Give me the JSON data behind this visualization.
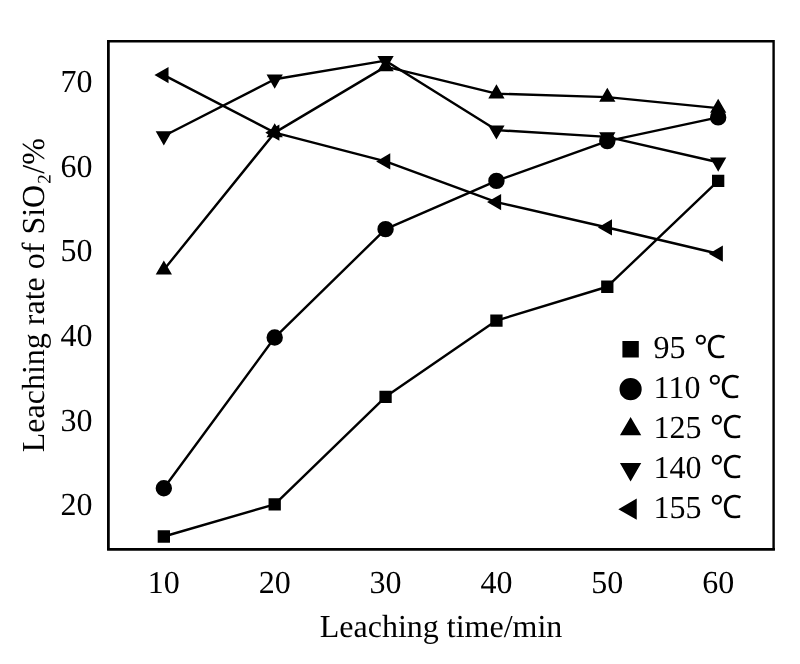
{
  "chart_data": {
    "type": "line",
    "xlabel": "Leaching time/min",
    "ylabel": "Leaching rate of SiO₂/%",
    "x": [
      10,
      20,
      30,
      40,
      50,
      60
    ],
    "series": [
      {
        "name": "95 ℃",
        "color": "#000000",
        "marker": "square",
        "values": [
          16.5,
          20.3,
          33,
          42,
          46,
          58.5
        ]
      },
      {
        "name": "110 ℃",
        "color": "#000000",
        "marker": "circle",
        "values": [
          22.2,
          40,
          52.8,
          58.5,
          63.2,
          66
        ]
      },
      {
        "name": "125 ℃",
        "color": "#000000",
        "marker": "triangle",
        "values": [
          48,
          64.2,
          72,
          68.8,
          68.4,
          67.1
        ]
      },
      {
        "name": "140 ℃",
        "color": "#000000",
        "marker": "triangle-down",
        "values": [
          63.8,
          70.5,
          72.7,
          64.5,
          63.7,
          60.7
        ]
      },
      {
        "name": "155 ℃",
        "color": "#000000",
        "marker": "triangle-left",
        "values": [
          71,
          64.2,
          60.8,
          56,
          53,
          49.9
        ]
      }
    ],
    "xlim": [
      5,
      65
    ],
    "xticks": [
      10,
      20,
      30,
      40,
      50,
      60
    ],
    "ylim": [
      15,
      75
    ],
    "yticks": [
      20,
      30,
      40,
      50,
      60,
      70
    ],
    "grid": false,
    "legend": "bottom right",
    "line_style": "solid"
  }
}
